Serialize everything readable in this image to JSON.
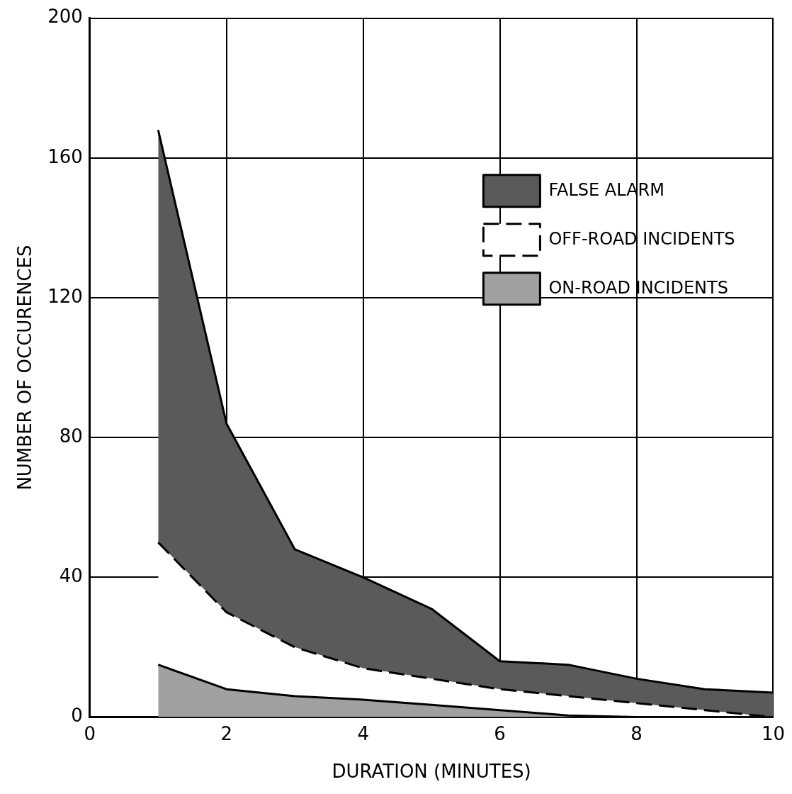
{
  "chart_data": {
    "type": "area",
    "xlabel": "DURATION (MINUTES)",
    "ylabel": "NUMBER OF OCCURENCES",
    "x": [
      1,
      2,
      3,
      4,
      5,
      6,
      7,
      8,
      9,
      10
    ],
    "series": [
      {
        "name": "ON-ROAD INCIDENTS",
        "color": "#a0a0a0",
        "values": [
          15,
          8,
          6,
          5,
          3.5,
          2,
          0.5,
          0,
          0,
          0
        ],
        "line_style": "solid"
      },
      {
        "name": "OFF-ROAD INCIDENTS",
        "color": "#ffffff",
        "values": [
          35,
          22,
          14,
          9,
          7.5,
          6,
          5.5,
          4,
          2,
          0
        ],
        "line_style": "dashed"
      },
      {
        "name": "FALSE ALARM",
        "color": "#5a5a5a",
        "values": [
          118,
          54,
          28,
          26,
          20,
          8,
          9,
          7,
          6,
          7
        ],
        "line_style": "solid"
      }
    ],
    "stacked": true,
    "xlim": [
      0,
      10
    ],
    "xticks": [
      0,
      2,
      4,
      6,
      8,
      10
    ],
    "ylim": [
      0,
      200
    ],
    "yticks": [
      0,
      40,
      80,
      120,
      160,
      200
    ],
    "grid": true,
    "legend": "top right"
  }
}
